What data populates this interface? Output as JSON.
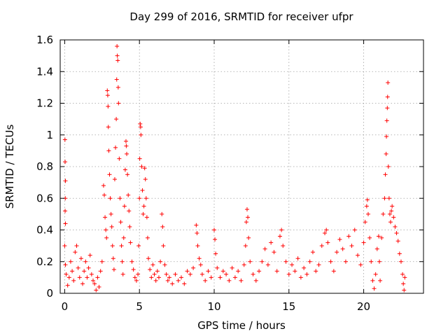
{
  "chart_data": {
    "type": "scatter",
    "title": "Day 299 of 2016, SRMTID for receiver ufpr",
    "xlabel": "GPS time / hours",
    "ylabel": "SRMTID / TECUs",
    "xlim": [
      -0.3,
      24
    ],
    "ylim": [
      0,
      1.6
    ],
    "xticks": [
      0,
      5,
      10,
      15,
      20
    ],
    "xtick_labels": [
      "0",
      "5",
      "10",
      "15",
      "20"
    ],
    "yticks": [
      0,
      0.2,
      0.4,
      0.6,
      0.8,
      1,
      1.2,
      1.4,
      1.6
    ],
    "ytick_labels": [
      "0",
      "0.2",
      "0.4",
      "0.6",
      "0.8",
      "1",
      "1.2",
      "1.4",
      "1.6"
    ],
    "grid": true,
    "marker": "+",
    "series": [
      {
        "name": "ufpr",
        "color": "#ff0000",
        "points": [
          [
            0.02,
            0.97
          ],
          [
            0.03,
            0.83
          ],
          [
            0.05,
            0.71
          ],
          [
            0.04,
            0.6
          ],
          [
            0.03,
            0.52
          ],
          [
            0.05,
            0.44
          ],
          [
            0.0,
            0.3
          ],
          [
            0.05,
            0.18
          ],
          [
            0.1,
            0.12
          ],
          [
            0.2,
            0.05
          ],
          [
            0.3,
            0.1
          ],
          [
            0.4,
            0.2
          ],
          [
            0.5,
            0.14
          ],
          [
            0.6,
            0.08
          ],
          [
            0.7,
            0.26
          ],
          [
            0.8,
            0.3
          ],
          [
            0.9,
            0.16
          ],
          [
            1.0,
            0.1
          ],
          [
            1.1,
            0.22
          ],
          [
            1.2,
            0.06
          ],
          [
            1.3,
            0.14
          ],
          [
            1.4,
            0.2
          ],
          [
            1.5,
            0.1
          ],
          [
            1.6,
            0.16
          ],
          [
            1.7,
            0.24
          ],
          [
            1.8,
            0.12
          ],
          [
            1.9,
            0.08
          ],
          [
            2.0,
            0.06
          ],
          [
            2.1,
            0.02
          ],
          [
            2.2,
            0.1
          ],
          [
            2.3,
            0.04
          ],
          [
            2.4,
            0.14
          ],
          [
            2.5,
            0.2
          ],
          [
            2.6,
            0.68
          ],
          [
            2.65,
            0.62
          ],
          [
            2.7,
            0.48
          ],
          [
            2.75,
            0.4
          ],
          [
            2.8,
            0.35
          ],
          [
            2.85,
            1.28
          ],
          [
            2.88,
            1.25
          ],
          [
            2.9,
            1.18
          ],
          [
            2.92,
            1.05
          ],
          [
            2.95,
            0.9
          ],
          [
            3.0,
            0.75
          ],
          [
            3.05,
            0.6
          ],
          [
            3.1,
            0.5
          ],
          [
            3.15,
            0.42
          ],
          [
            3.2,
            0.3
          ],
          [
            3.25,
            0.22
          ],
          [
            3.3,
            0.15
          ],
          [
            3.35,
            0.72
          ],
          [
            3.4,
            0.92
          ],
          [
            3.45,
            1.1
          ],
          [
            3.48,
            1.35
          ],
          [
            3.5,
            1.56
          ],
          [
            3.52,
            1.5
          ],
          [
            3.55,
            1.47
          ],
          [
            3.58,
            1.3
          ],
          [
            3.6,
            1.2
          ],
          [
            3.65,
            0.85
          ],
          [
            3.7,
            0.6
          ],
          [
            3.75,
            0.45
          ],
          [
            3.8,
            0.3
          ],
          [
            3.85,
            0.2
          ],
          [
            3.9,
            0.12
          ],
          [
            3.95,
            0.35
          ],
          [
            4.0,
            0.55
          ],
          [
            4.05,
            0.78
          ],
          [
            4.1,
            0.96
          ],
          [
            4.12,
            0.93
          ],
          [
            4.15,
            0.88
          ],
          [
            4.2,
            0.75
          ],
          [
            4.25,
            0.62
          ],
          [
            4.3,
            0.52
          ],
          [
            4.35,
            0.42
          ],
          [
            4.4,
            0.32
          ],
          [
            4.5,
            0.2
          ],
          [
            4.6,
            0.15
          ],
          [
            4.7,
            0.1
          ],
          [
            4.8,
            0.08
          ],
          [
            4.9,
            0.12
          ],
          [
            4.95,
            0.3
          ],
          [
            5.0,
            0.6
          ],
          [
            5.02,
            0.85
          ],
          [
            5.05,
            1.07
          ],
          [
            5.08,
            1.05
          ],
          [
            5.1,
            1.0
          ],
          [
            5.15,
            0.8
          ],
          [
            5.2,
            0.65
          ],
          [
            5.25,
            0.5
          ],
          [
            5.3,
            0.55
          ],
          [
            5.35,
            0.79
          ],
          [
            5.4,
            0.72
          ],
          [
            5.45,
            0.6
          ],
          [
            5.5,
            0.48
          ],
          [
            5.55,
            0.35
          ],
          [
            5.6,
            0.22
          ],
          [
            5.7,
            0.15
          ],
          [
            5.8,
            0.1
          ],
          [
            5.9,
            0.18
          ],
          [
            6.0,
            0.12
          ],
          [
            6.1,
            0.08
          ],
          [
            6.2,
            0.14
          ],
          [
            6.3,
            0.1
          ],
          [
            6.4,
            0.2
          ],
          [
            6.5,
            0.5
          ],
          [
            6.55,
            0.42
          ],
          [
            6.6,
            0.3
          ],
          [
            6.7,
            0.18
          ],
          [
            6.8,
            0.12
          ],
          [
            6.9,
            0.08
          ],
          [
            7.0,
            0.1
          ],
          [
            7.2,
            0.06
          ],
          [
            7.4,
            0.12
          ],
          [
            7.6,
            0.08
          ],
          [
            7.8,
            0.1
          ],
          [
            8.0,
            0.06
          ],
          [
            8.2,
            0.14
          ],
          [
            8.4,
            0.12
          ],
          [
            8.6,
            0.16
          ],
          [
            8.8,
            0.43
          ],
          [
            8.85,
            0.38
          ],
          [
            8.9,
            0.3
          ],
          [
            9.0,
            0.22
          ],
          [
            9.1,
            0.18
          ],
          [
            9.2,
            0.12
          ],
          [
            9.4,
            0.08
          ],
          [
            9.6,
            0.14
          ],
          [
            9.8,
            0.1
          ],
          [
            10.0,
            0.4
          ],
          [
            10.05,
            0.34
          ],
          [
            10.1,
            0.25
          ],
          [
            10.2,
            0.16
          ],
          [
            10.4,
            0.1
          ],
          [
            10.6,
            0.14
          ],
          [
            10.8,
            0.12
          ],
          [
            11.0,
            0.08
          ],
          [
            11.2,
            0.16
          ],
          [
            11.4,
            0.1
          ],
          [
            11.6,
            0.14
          ],
          [
            11.8,
            0.08
          ],
          [
            12.0,
            0.18
          ],
          [
            12.1,
            0.3
          ],
          [
            12.15,
            0.45
          ],
          [
            12.2,
            0.53
          ],
          [
            12.25,
            0.48
          ],
          [
            12.3,
            0.35
          ],
          [
            12.4,
            0.2
          ],
          [
            12.6,
            0.12
          ],
          [
            12.8,
            0.08
          ],
          [
            13.0,
            0.14
          ],
          [
            13.2,
            0.2
          ],
          [
            13.4,
            0.28
          ],
          [
            13.6,
            0.18
          ],
          [
            13.8,
            0.32
          ],
          [
            14.0,
            0.26
          ],
          [
            14.2,
            0.14
          ],
          [
            14.4,
            0.36
          ],
          [
            14.5,
            0.4
          ],
          [
            14.6,
            0.3
          ],
          [
            14.8,
            0.2
          ],
          [
            15.0,
            0.12
          ],
          [
            15.2,
            0.18
          ],
          [
            15.4,
            0.14
          ],
          [
            15.6,
            0.22
          ],
          [
            15.8,
            0.1
          ],
          [
            16.0,
            0.16
          ],
          [
            16.2,
            0.12
          ],
          [
            16.4,
            0.2
          ],
          [
            16.6,
            0.26
          ],
          [
            16.8,
            0.14
          ],
          [
            17.0,
            0.18
          ],
          [
            17.2,
            0.3
          ],
          [
            17.4,
            0.38
          ],
          [
            17.5,
            0.4
          ],
          [
            17.6,
            0.32
          ],
          [
            17.8,
            0.2
          ],
          [
            18.0,
            0.14
          ],
          [
            18.2,
            0.26
          ],
          [
            18.4,
            0.34
          ],
          [
            18.6,
            0.28
          ],
          [
            18.8,
            0.2
          ],
          [
            19.0,
            0.36
          ],
          [
            19.2,
            0.3
          ],
          [
            19.4,
            0.4
          ],
          [
            19.6,
            0.24
          ],
          [
            19.8,
            0.18
          ],
          [
            20.0,
            0.32
          ],
          [
            20.1,
            0.45
          ],
          [
            20.2,
            0.55
          ],
          [
            20.25,
            0.59
          ],
          [
            20.3,
            0.5
          ],
          [
            20.4,
            0.35
          ],
          [
            20.5,
            0.2
          ],
          [
            20.6,
            0.08
          ],
          [
            20.7,
            0.03
          ],
          [
            20.8,
            0.12
          ],
          [
            20.9,
            0.28
          ],
          [
            21.0,
            0.36
          ],
          [
            21.05,
            0.2
          ],
          [
            21.1,
            0.08
          ],
          [
            21.2,
            0.35
          ],
          [
            21.3,
            0.5
          ],
          [
            21.4,
            0.6
          ],
          [
            21.45,
            0.75
          ],
          [
            21.5,
            0.88
          ],
          [
            21.52,
            0.99
          ],
          [
            21.55,
            1.09
          ],
          [
            21.58,
            1.17
          ],
          [
            21.6,
            1.24
          ],
          [
            21.62,
            1.33
          ],
          [
            21.65,
            0.8
          ],
          [
            21.7,
            0.6
          ],
          [
            21.75,
            0.5
          ],
          [
            21.8,
            0.45
          ],
          [
            21.85,
            0.52
          ],
          [
            21.9,
            0.55
          ],
          [
            22.0,
            0.48
          ],
          [
            22.1,
            0.42
          ],
          [
            22.2,
            0.38
          ],
          [
            22.3,
            0.33
          ],
          [
            22.4,
            0.25
          ],
          [
            22.5,
            0.2
          ],
          [
            22.6,
            0.12
          ],
          [
            22.65,
            0.06
          ],
          [
            22.7,
            0.02
          ],
          [
            22.75,
            0.1
          ]
        ]
      }
    ]
  }
}
